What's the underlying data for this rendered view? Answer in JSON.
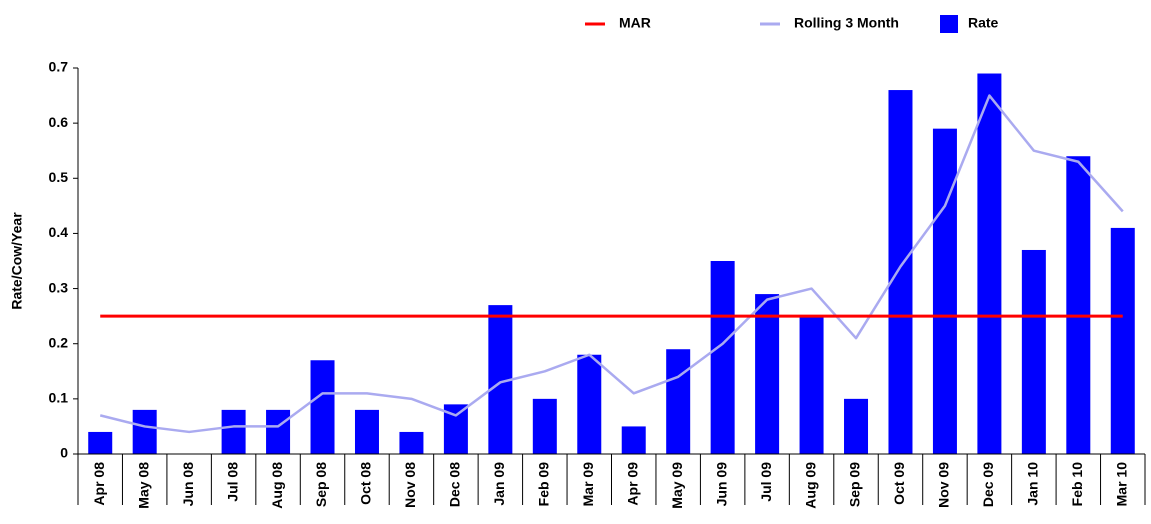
{
  "chart_data": {
    "type": "bar",
    "y_label": "Rate/Cow/Year",
    "categories": [
      "Apr 08",
      "May 08",
      "Jun 08",
      "Jul 08",
      "Aug 08",
      "Sep 08",
      "Oct 08",
      "Nov 08",
      "Dec 08",
      "Jan 09",
      "Feb 09",
      "Mar 09",
      "Apr 09",
      "May 09",
      "Jun 09",
      "Jul 09",
      "Aug 09",
      "Sep 09",
      "Oct 09",
      "Nov 09",
      "Dec 09",
      "Jan 10",
      "Feb 10",
      "Mar 10"
    ],
    "series": [
      {
        "name": "MAR",
        "type": "line",
        "color": "#ff0000",
        "values": [
          0.25,
          0.25,
          0.25,
          0.25,
          0.25,
          0.25,
          0.25,
          0.25,
          0.25,
          0.25,
          0.25,
          0.25,
          0.25,
          0.25,
          0.25,
          0.25,
          0.25,
          0.25,
          0.25,
          0.25,
          0.25,
          0.25,
          0.25,
          0.25
        ]
      },
      {
        "name": "Rolling 3 Month",
        "type": "line",
        "color": "#aaaaf0",
        "values": [
          0.07,
          0.05,
          0.04,
          0.05,
          0.05,
          0.11,
          0.11,
          0.1,
          0.07,
          0.13,
          0.15,
          0.18,
          0.11,
          0.14,
          0.2,
          0.28,
          0.3,
          0.21,
          0.34,
          0.45,
          0.65,
          0.55,
          0.53,
          0.44
        ]
      },
      {
        "name": "Rate",
        "type": "bar",
        "color": "#0000ff",
        "values": [
          0.04,
          0.08,
          0,
          0.08,
          0.08,
          0.17,
          0.08,
          0.04,
          0.09,
          0.27,
          0.1,
          0.18,
          0.05,
          0.19,
          0.35,
          0.29,
          0.25,
          0.1,
          0.66,
          0.59,
          0.69,
          0.37,
          0.54,
          0.41
        ]
      }
    ],
    "ylim": [
      0,
      0.7
    ],
    "yticks": [
      0,
      0.1,
      0.2,
      0.3,
      0.4,
      0.5,
      0.6,
      0.7
    ],
    "grid": false,
    "legend": "top"
  }
}
